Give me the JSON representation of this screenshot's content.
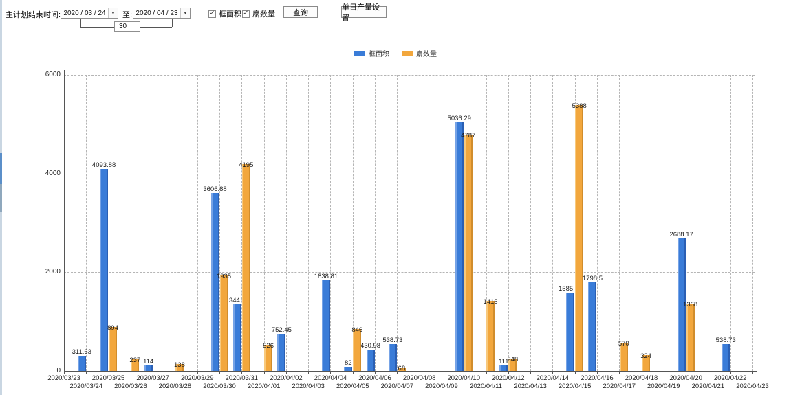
{
  "toolbar": {
    "end_time_label": "主计划结束时间:",
    "date_from": "2020 / 03 / 24",
    "to_label": "至:",
    "date_to": "2020 / 04 / 23",
    "interval_value": "30",
    "checkbox_frame_area_label": "框面积",
    "checkbox_fan_count_label": "扇数量",
    "checkbox_checked_glyph": "✓",
    "dropdown_glyph": "▼",
    "query_button_label": "查询",
    "daily_output_button_label": "单日产量设置"
  },
  "chart_data": {
    "type": "bar",
    "title": "",
    "xlabel": "",
    "ylabel": "",
    "ylim": [
      0,
      6000
    ],
    "yticks": [
      0,
      2000,
      4000,
      6000
    ],
    "grid": true,
    "legend_position": "top",
    "categories": [
      "2020/03/23",
      "2020/03/24",
      "2020/03/25",
      "2020/03/26",
      "2020/03/27",
      "2020/03/28",
      "2020/03/29",
      "2020/03/30",
      "2020/03/31",
      "2020/04/01",
      "2020/04/02",
      "2020/04/03",
      "2020/04/04",
      "2020/04/05",
      "2020/04/06",
      "2020/04/07",
      "2020/04/08",
      "2020/04/09",
      "2020/04/10",
      "2020/04/11",
      "2020/04/12",
      "2020/04/13",
      "2020/04/14",
      "2020/04/15",
      "2020/04/16",
      "2020/04/17",
      "2020/04/18",
      "2020/04/19",
      "2020/04/20",
      "2020/04/21",
      "2020/04/22",
      "2020/04/23"
    ],
    "series": [
      {
        "name": "框面积",
        "key": "frame-area",
        "color": "#3a7cd8",
        "values": [
          null,
          311.63,
          4093.88,
          null,
          114,
          null,
          null,
          3606.88,
          1344.95,
          null,
          752.45,
          null,
          1838.81,
          82,
          430.98,
          538.73,
          null,
          null,
          5036.29,
          null,
          111,
          null,
          null,
          1585.96,
          1798.5,
          null,
          null,
          null,
          2688.17,
          null,
          538.73,
          null
        ]
      },
      {
        "name": "扇数量",
        "key": "fan-count",
        "color": "#f2a73d",
        "values": [
          null,
          null,
          894,
          237,
          null,
          138,
          null,
          1935,
          4195,
          526,
          null,
          null,
          null,
          846,
          null,
          68,
          null,
          null,
          4787,
          1415,
          248,
          null,
          null,
          5388,
          null,
          570,
          324,
          null,
          1368,
          null,
          null,
          null
        ]
      }
    ]
  }
}
